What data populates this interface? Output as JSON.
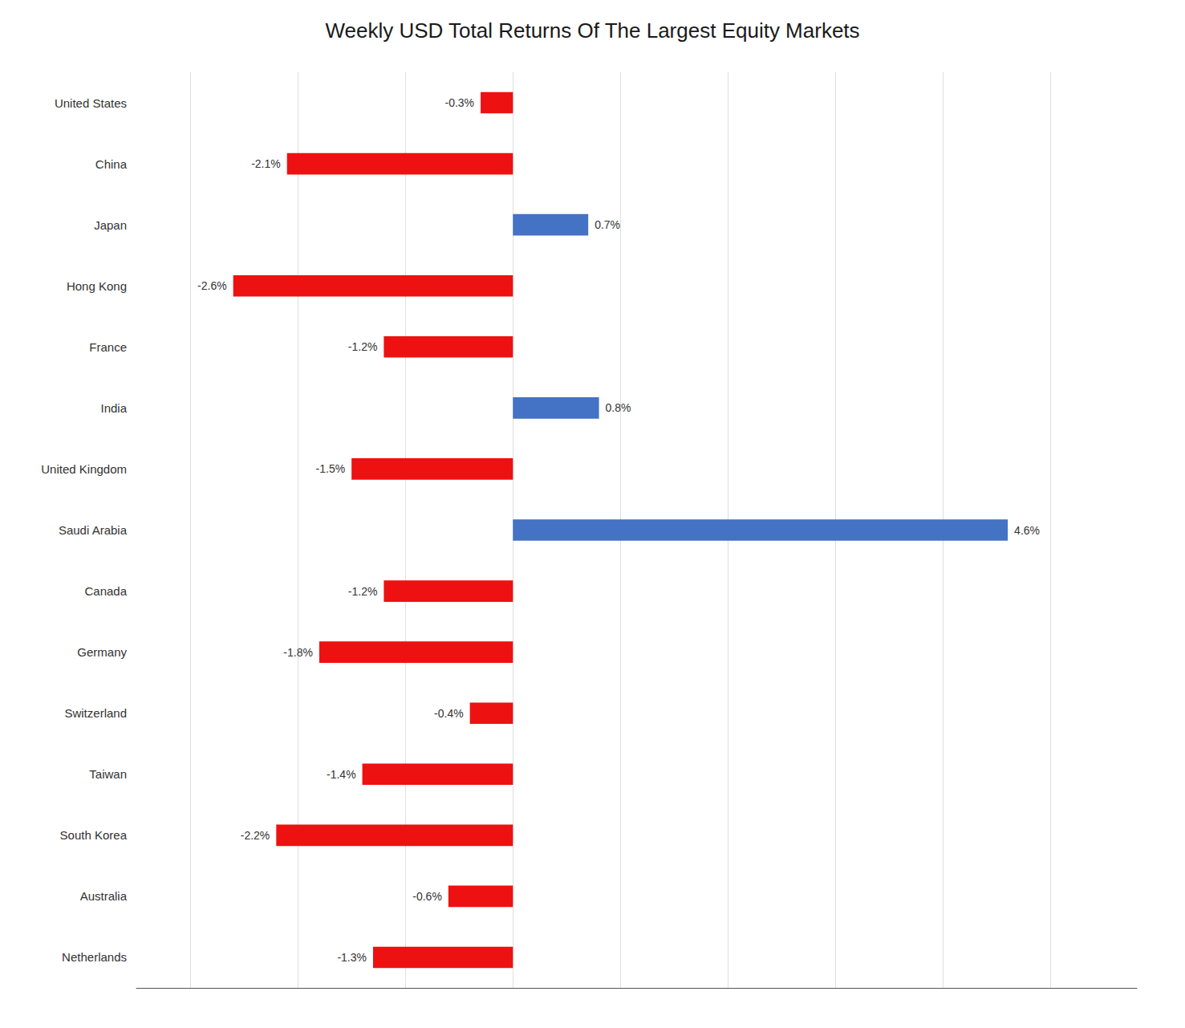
{
  "chart_data": {
    "type": "bar",
    "orientation": "horizontal",
    "title": "Weekly USD Total Returns Of The Largest Equity Markets",
    "categories": [
      "United States",
      "China",
      "Japan",
      "Hong Kong",
      "France",
      "India",
      "United Kingdom",
      "Saudi Arabia",
      "Canada",
      "Germany",
      "Switzerland",
      "Taiwan",
      "South Korea",
      "Australia",
      "Netherlands"
    ],
    "values": [
      -0.3,
      -2.1,
      0.7,
      -2.6,
      -1.2,
      0.8,
      -1.5,
      4.6,
      -1.2,
      -1.8,
      -0.4,
      -1.4,
      -2.2,
      -0.6,
      -1.3
    ],
    "value_labels": [
      "-0.3%",
      "-2.1%",
      "0.7%",
      "-2.6%",
      "-1.2%",
      "0.8%",
      "-1.5%",
      "4.6%",
      "-1.2%",
      "-1.8%",
      "-0.4%",
      "-1.4%",
      "-2.2%",
      "-0.6%",
      "-1.3%"
    ],
    "colors": [
      "#EE1111",
      "#EE1111",
      "#4472C4",
      "#EE1111",
      "#EE1111",
      "#4472C4",
      "#EE1111",
      "#4472C4",
      "#EE1111",
      "#EE1111",
      "#EE1111",
      "#EE1111",
      "#EE1111",
      "#EE1111",
      "#EE1111"
    ],
    "xlim": [
      -3.5,
      5.8
    ],
    "xticks": [
      -3,
      -2,
      -1,
      0,
      1,
      2,
      3,
      4,
      5
    ],
    "grid": true,
    "data_labels": true,
    "tick_labels": "y"
  }
}
